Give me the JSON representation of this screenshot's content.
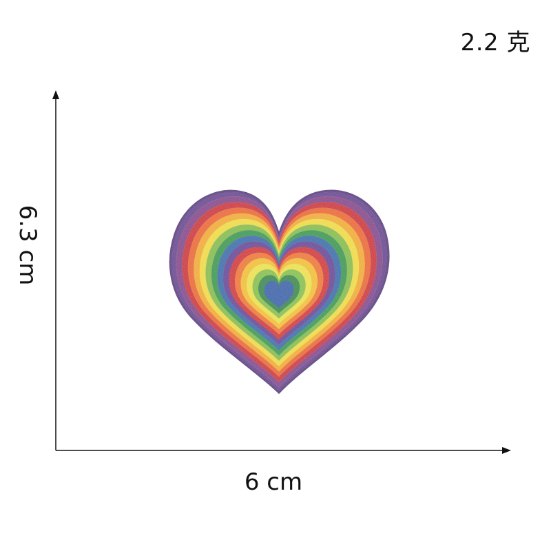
{
  "labels": {
    "weight": "2.2 克",
    "width": "6 cm",
    "height": "6.3 cm"
  },
  "product": {
    "icon": "rainbow-heart-patch-icon",
    "ring_colors": [
      "#6b3f95",
      "#8a3f8f",
      "#d3202e",
      "#f26b1d",
      "#f8b21b",
      "#f7e23a",
      "#8bc34a",
      "#2e9e4f",
      "#2f6fb3",
      "#6a3f9c",
      "#d8262f",
      "#f47b20",
      "#f9c623",
      "#f3e84a",
      "#8cc74a",
      "#2c8f48",
      "#2d65b0"
    ]
  },
  "colors": {
    "text": "#111111",
    "axis": "#111111",
    "background": "#ffffff"
  }
}
